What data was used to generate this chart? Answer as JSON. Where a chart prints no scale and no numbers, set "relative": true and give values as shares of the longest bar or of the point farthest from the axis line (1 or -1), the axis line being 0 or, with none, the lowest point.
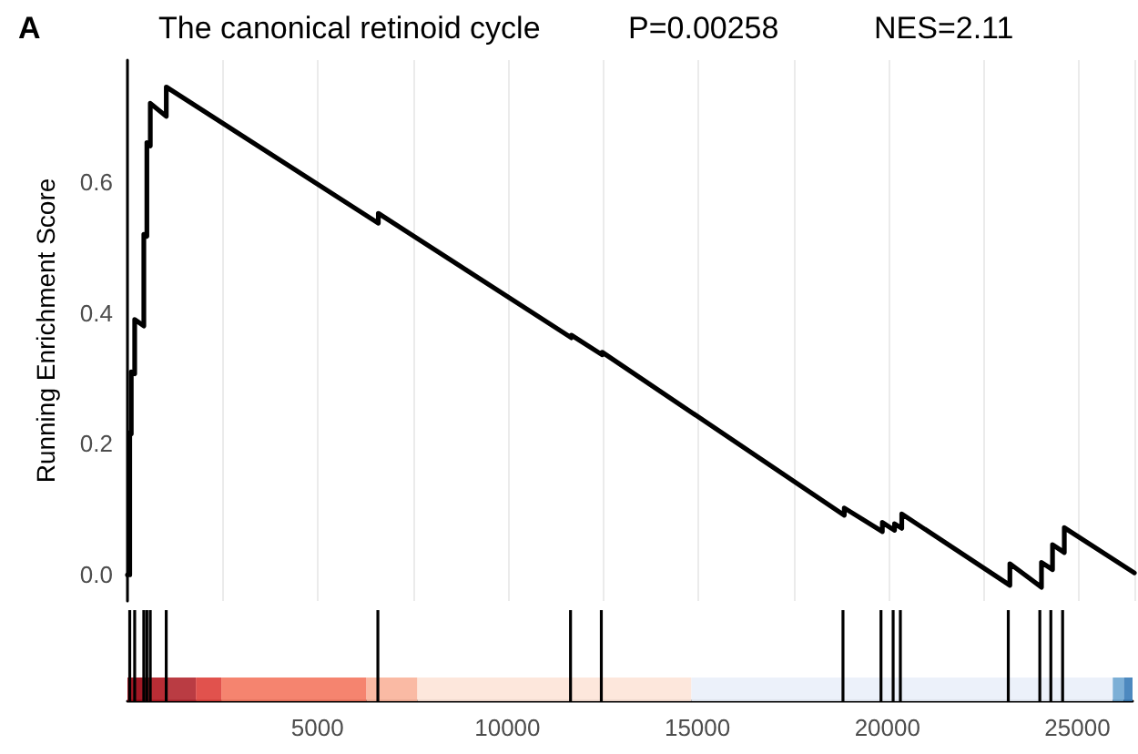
{
  "chart_data": [
    {
      "type": "line",
      "title": "The canonical retinoid cycle",
      "ylabel": "Running Enrichment Score",
      "annotations": [
        "A",
        "P=0.00258",
        "NES=2.11"
      ],
      "series": [
        {
          "color": "#000000",
          "x": [
            0,
            60,
            60,
            100,
            100,
            190,
            190,
            430,
            430,
            510,
            510,
            600,
            600,
            1020,
            1020,
            6590,
            6590,
            11660,
            11660,
            12470,
            12470,
            18830,
            18830,
            19830,
            19830,
            20150,
            20150,
            20340,
            20340,
            23180,
            23180,
            24010,
            24010,
            24300,
            24300,
            24610,
            24610,
            26450
          ],
          "values": [
            0,
            0,
            0.217,
            0.215,
            0.31,
            0.307,
            0.39,
            0.38,
            0.52,
            0.517,
            0.66,
            0.655,
            0.72,
            0.7,
            0.745,
            0.537,
            0.552,
            0.362,
            0.366,
            0.336,
            0.34,
            0.091,
            0.102,
            0.066,
            0.08,
            0.068,
            0.078,
            0.071,
            0.093,
            -0.016,
            0.017,
            -0.019,
            0.019,
            0.008,
            0.046,
            0.034,
            0.072,
            0.003
          ]
        }
      ],
      "xlim": [
        0,
        26450
      ],
      "ylim": [
        -0.04,
        0.786
      ],
      "xticks": [
        {
          "value": 2500,
          "label": null
        },
        5000,
        {
          "value": 7500,
          "label": null
        },
        10000,
        {
          "value": 12500,
          "label": null
        },
        15000,
        {
          "value": 17500,
          "label": null
        },
        20000,
        {
          "value": 22500,
          "label": null
        },
        25000
      ],
      "yticks": [
        {
          "value": 0,
          "label": "0.0"
        },
        {
          "value": 0.2,
          "label": "0.2"
        },
        {
          "value": 0.4,
          "label": "0.4"
        },
        {
          "value": 0.6,
          "label": "0.6"
        }
      ],
      "grid": "x",
      "tick_labels": "y",
      "marker": "none",
      "line_style": "solid"
    },
    {
      "type": "bar",
      "relative": true,
      "x": [
        60,
        190,
        430,
        510,
        600,
        1020,
        6590,
        11660,
        12470,
        18830,
        19830,
        20150,
        20340,
        23180,
        24010,
        24300,
        24610
      ],
      "values": [
        1,
        1,
        1,
        1,
        1,
        1,
        1,
        1,
        1,
        1,
        1,
        1,
        1,
        1,
        1,
        1,
        1
      ],
      "color": "#000000",
      "xlim": [
        0,
        26450
      ],
      "xticks": [
        5000,
        10000,
        15000,
        20000,
        25000
      ],
      "tick_labels": "x",
      "bands": [
        {
          "axis": "x",
          "from": 0,
          "to": 500,
          "color": "#99000d"
        },
        {
          "axis": "x",
          "from": 500,
          "to": 985,
          "color": "#b0161f"
        },
        {
          "axis": "x",
          "from": 985,
          "to": 1800,
          "color": "#b2272f"
        },
        {
          "axis": "x",
          "from": 1800,
          "to": 2470,
          "color": "#de3f3a"
        },
        {
          "axis": "x",
          "from": 2470,
          "to": 6290,
          "color": "#f4775f"
        },
        {
          "axis": "x",
          "from": 6290,
          "to": 7630,
          "color": "#f9b39a"
        },
        {
          "axis": "x",
          "from": 7630,
          "to": 14840,
          "color": "#fde4d8"
        },
        {
          "axis": "x",
          "from": 14840,
          "to": 25930,
          "color": "#eaf0fa"
        },
        {
          "axis": "x",
          "from": 25930,
          "to": 26220,
          "color": "#6ea6d2"
        },
        {
          "axis": "x",
          "from": 26220,
          "to": 26450,
          "color": "#3a7cb8"
        }
      ]
    }
  ]
}
